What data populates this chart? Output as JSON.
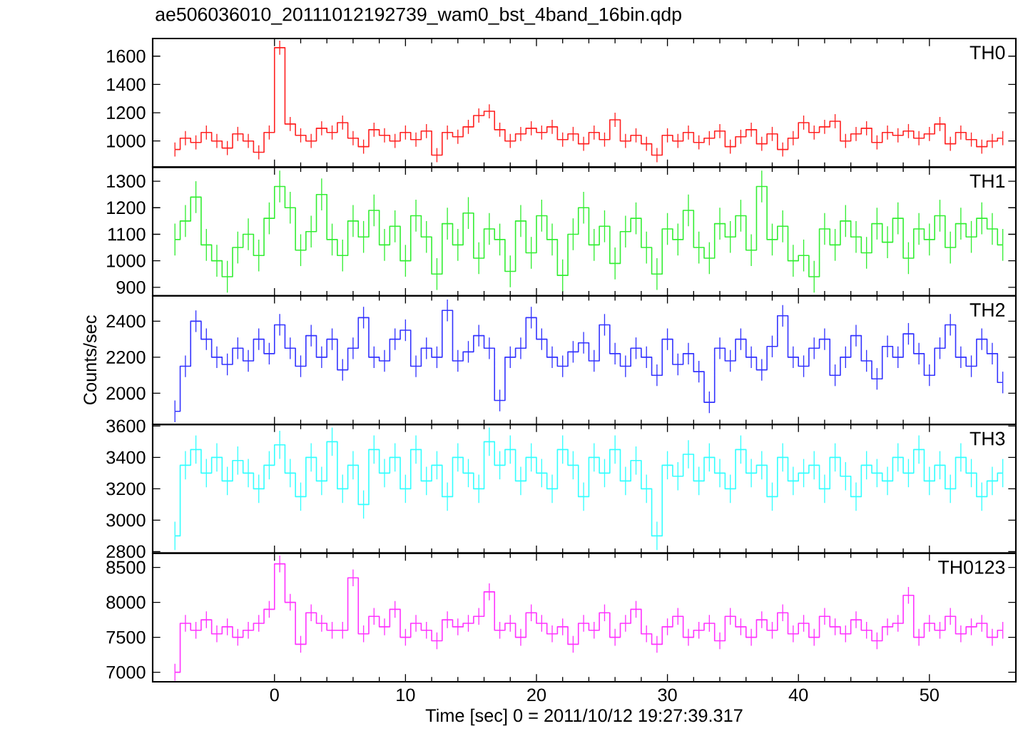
{
  "chart_data": [
    {
      "type": "step",
      "title": "ae506036010_20111012192739_wam0_bst_4band_16bin.qdp",
      "xlim": [
        -9.3,
        56.6
      ],
      "xticks": [
        0,
        10,
        20,
        30,
        40,
        50
      ],
      "ylim": [
        815,
        1725
      ],
      "yticks": [
        1000,
        1200,
        1400,
        1600
      ],
      "tick_labels": "y",
      "legend": "top right",
      "x": [
        -7.6,
        -6.8,
        -6.0,
        -5.2,
        -4.4,
        -3.6,
        -2.8,
        -2.0,
        -1.2,
        -0.4,
        0.4,
        1.2,
        2.0,
        2.8,
        3.6,
        4.4,
        5.2,
        6.0,
        6.8,
        7.6,
        8.4,
        9.2,
        10.0,
        10.8,
        11.6,
        12.4,
        13.2,
        14.0,
        14.8,
        15.6,
        16.4,
        17.2,
        18.0,
        18.8,
        19.6,
        20.4,
        21.2,
        22.0,
        22.8,
        23.6,
        24.4,
        25.2,
        26.0,
        26.8,
        27.6,
        28.4,
        29.2,
        30.0,
        30.8,
        31.6,
        32.4,
        33.2,
        34.0,
        34.8,
        35.6,
        36.4,
        37.2,
        38.0,
        38.8,
        39.6,
        40.4,
        41.2,
        42.0,
        42.8,
        43.6,
        44.4,
        45.2,
        46.0,
        46.8,
        47.6,
        48.4,
        49.2,
        50.0,
        50.8,
        51.6,
        52.4,
        53.2,
        54.0,
        54.8,
        55.6
      ],
      "series": [
        {
          "name": "TH0",
          "color": "#ff2020",
          "values": [
            940,
            1020,
            990,
            1060,
            1000,
            950,
            1050,
            1000,
            920,
            1060,
            1660,
            1120,
            1040,
            1000,
            1090,
            1060,
            1130,
            1020,
            960,
            1080,
            1040,
            1000,
            1060,
            1010,
            1070,
            900,
            1060,
            1030,
            1100,
            1180,
            1210,
            1080,
            1000,
            1050,
            1090,
            1060,
            1100,
            1010,
            1050,
            980,
            1060,
            1010,
            1150,
            1000,
            1040,
            980,
            900,
            1040,
            1000,
            1060,
            990,
            1020,
            1070,
            960,
            1030,
            1080,
            980,
            1050,
            940,
            1020,
            1130,
            1060,
            1100,
            1140,
            1000,
            1050,
            1090,
            990,
            1060,
            1040,
            1070,
            1020,
            1050,
            1120,
            980,
            1060,
            1010,
            960,
            1000,
            1020
          ],
          "errors": [
            50,
            50,
            50,
            50,
            50,
            50,
            50,
            50,
            50,
            50,
            50,
            50,
            50,
            50,
            50,
            50,
            50,
            50,
            50,
            50,
            50,
            50,
            50,
            50,
            50,
            50,
            50,
            50,
            50,
            50,
            50,
            50,
            50,
            50,
            50,
            50,
            50,
            50,
            50,
            50,
            50,
            50,
            50,
            50,
            50,
            50,
            50,
            50,
            50,
            50,
            50,
            50,
            50,
            50,
            50,
            50,
            50,
            50,
            50,
            50,
            50,
            50,
            50,
            50,
            50,
            50,
            50,
            50,
            50,
            50,
            50,
            50,
            50,
            50,
            50,
            50,
            50,
            50,
            50,
            50
          ]
        }
      ]
    },
    {
      "type": "step",
      "xlim": [
        -9.3,
        56.6
      ],
      "xticks": [
        0,
        10,
        20,
        30,
        40,
        50
      ],
      "ylim": [
        868,
        1353
      ],
      "yticks": [
        900,
        1000,
        1100,
        1200,
        1300
      ],
      "tick_labels": "y",
      "legend": "top right",
      "x": [
        -7.6,
        -6.8,
        -6.0,
        -5.2,
        -4.4,
        -3.6,
        -2.8,
        -2.0,
        -1.2,
        -0.4,
        0.4,
        1.2,
        2.0,
        2.8,
        3.6,
        4.4,
        5.2,
        6.0,
        6.8,
        7.6,
        8.4,
        9.2,
        10.0,
        10.8,
        11.6,
        12.4,
        13.2,
        14.0,
        14.8,
        15.6,
        16.4,
        17.2,
        18.0,
        18.8,
        19.6,
        20.4,
        21.2,
        22.0,
        22.8,
        23.6,
        24.4,
        25.2,
        26.0,
        26.8,
        27.6,
        28.4,
        29.2,
        30.0,
        30.8,
        31.6,
        32.4,
        33.2,
        34.0,
        34.8,
        35.6,
        36.4,
        37.2,
        38.0,
        38.8,
        39.6,
        40.4,
        41.2,
        42.0,
        42.8,
        43.6,
        44.4,
        45.2,
        46.0,
        46.8,
        47.6,
        48.4,
        49.2,
        50.0,
        50.8,
        51.6,
        52.4,
        53.2,
        54.0,
        54.8,
        55.6
      ],
      "series": [
        {
          "name": "TH1",
          "color": "#33ee33",
          "values": [
            1080,
            1150,
            1240,
            1060,
            1000,
            940,
            1050,
            1100,
            1020,
            1160,
            1280,
            1200,
            1040,
            1110,
            1250,
            1080,
            1020,
            1150,
            1090,
            1190,
            1060,
            1130,
            1000,
            1170,
            1090,
            950,
            1140,
            1060,
            1180,
            1010,
            1120,
            1080,
            960,
            1150,
            1030,
            1170,
            1080,
            945,
            1100,
            1200,
            1060,
            1130,
            990,
            1110,
            1160,
            1050,
            950,
            1120,
            1080,
            1190,
            1050,
            1010,
            1140,
            1090,
            1170,
            1040,
            1280,
            1080,
            1130,
            1000,
            1020,
            940,
            1120,
            1060,
            1150,
            1090,
            1030,
            1140,
            1070,
            1160,
            1010,
            1120,
            1080,
            1170,
            1050,
            1140,
            1090,
            1160,
            1120,
            1060
          ],
          "errors": [
            60,
            60,
            60,
            60,
            60,
            60,
            60,
            60,
            60,
            60,
            60,
            60,
            60,
            60,
            60,
            60,
            60,
            60,
            60,
            60,
            60,
            60,
            60,
            60,
            60,
            60,
            60,
            60,
            60,
            60,
            60,
            60,
            60,
            60,
            60,
            60,
            60,
            60,
            60,
            60,
            60,
            60,
            60,
            60,
            60,
            60,
            60,
            60,
            60,
            60,
            60,
            60,
            60,
            60,
            60,
            60,
            60,
            60,
            60,
            60,
            60,
            60,
            60,
            60,
            60,
            60,
            60,
            60,
            60,
            60,
            60,
            60,
            60,
            60,
            60,
            60,
            60,
            60,
            60,
            60
          ]
        }
      ]
    },
    {
      "type": "step",
      "xlim": [
        -9.3,
        56.6
      ],
      "xticks": [
        0,
        10,
        20,
        30,
        40,
        50
      ],
      "ylim": [
        1827,
        2541
      ],
      "yticks": [
        2000,
        2200,
        2400
      ],
      "tick_labels": "y",
      "legend": "top right",
      "ylabel": "Counts/sec",
      "x": [
        -7.6,
        -6.8,
        -6.0,
        -5.2,
        -4.4,
        -3.6,
        -2.8,
        -2.0,
        -1.2,
        -0.4,
        0.4,
        1.2,
        2.0,
        2.8,
        3.6,
        4.4,
        5.2,
        6.0,
        6.8,
        7.6,
        8.4,
        9.2,
        10.0,
        10.8,
        11.6,
        12.4,
        13.2,
        14.0,
        14.8,
        15.6,
        16.4,
        17.2,
        18.0,
        18.8,
        19.6,
        20.4,
        21.2,
        22.0,
        22.8,
        23.6,
        24.4,
        25.2,
        26.0,
        26.8,
        27.6,
        28.4,
        29.2,
        30.0,
        30.8,
        31.6,
        32.4,
        33.2,
        34.0,
        34.8,
        35.6,
        36.4,
        37.2,
        38.0,
        38.8,
        39.6,
        40.4,
        41.2,
        42.0,
        42.8,
        43.6,
        44.4,
        45.2,
        46.0,
        46.8,
        47.6,
        48.4,
        49.2,
        50.0,
        50.8,
        51.6,
        52.4,
        53.2,
        54.0,
        54.8,
        55.6
      ],
      "series": [
        {
          "name": "TH2",
          "color": "#3333ff",
          "values": [
            1900,
            2150,
            2400,
            2300,
            2200,
            2160,
            2250,
            2180,
            2300,
            2220,
            2380,
            2250,
            2150,
            2320,
            2200,
            2300,
            2130,
            2250,
            2420,
            2200,
            2180,
            2300,
            2350,
            2150,
            2250,
            2200,
            2460,
            2180,
            2230,
            2320,
            2250,
            1960,
            2200,
            2250,
            2420,
            2300,
            2200,
            2150,
            2230,
            2280,
            2180,
            2380,
            2220,
            2150,
            2250,
            2200,
            2100,
            2300,
            2160,
            2220,
            2120,
            1950,
            2250,
            2180,
            2300,
            2200,
            2130,
            2260,
            2430,
            2200,
            2150,
            2250,
            2300,
            2100,
            2200,
            2320,
            2180,
            2080,
            2260,
            2200,
            2330,
            2220,
            2100,
            2250,
            2380,
            2200,
            2150,
            2300,
            2220,
            2060
          ],
          "errors": [
            60,
            60,
            60,
            60,
            60,
            60,
            60,
            60,
            60,
            60,
            60,
            60,
            60,
            60,
            60,
            60,
            60,
            60,
            60,
            60,
            60,
            60,
            60,
            60,
            60,
            60,
            60,
            60,
            60,
            60,
            60,
            60,
            60,
            60,
            60,
            60,
            60,
            60,
            60,
            60,
            60,
            60,
            60,
            60,
            60,
            60,
            60,
            60,
            60,
            60,
            60,
            60,
            60,
            60,
            60,
            60,
            60,
            60,
            60,
            60,
            60,
            60,
            60,
            60,
            60,
            60,
            60,
            60,
            60,
            60,
            60,
            60,
            60,
            60,
            60,
            60,
            60,
            60,
            60,
            60
          ]
        }
      ]
    },
    {
      "type": "step",
      "xlim": [
        -9.3,
        56.6
      ],
      "xticks": [
        0,
        10,
        20,
        30,
        40,
        50
      ],
      "ylim": [
        2790,
        3610
      ],
      "yticks": [
        2800,
        3000,
        3200,
        3400,
        3600
      ],
      "tick_labels": "y",
      "legend": "top right",
      "x": [
        -7.6,
        -6.8,
        -6.0,
        -5.2,
        -4.4,
        -3.6,
        -2.8,
        -2.0,
        -1.2,
        -0.4,
        0.4,
        1.2,
        2.0,
        2.8,
        3.6,
        4.4,
        5.2,
        6.0,
        6.8,
        7.6,
        8.4,
        9.2,
        10.0,
        10.8,
        11.6,
        12.4,
        13.2,
        14.0,
        14.8,
        15.6,
        16.4,
        17.2,
        18.0,
        18.8,
        19.6,
        20.4,
        21.2,
        22.0,
        22.8,
        23.6,
        24.4,
        25.2,
        26.0,
        26.8,
        27.6,
        28.4,
        29.2,
        30.0,
        30.8,
        31.6,
        32.4,
        33.2,
        34.0,
        34.8,
        35.6,
        36.4,
        37.2,
        38.0,
        38.8,
        39.6,
        40.4,
        41.2,
        42.0,
        42.8,
        43.6,
        44.4,
        45.2,
        46.0,
        46.8,
        47.6,
        48.4,
        49.2,
        50.0,
        50.8,
        51.6,
        52.4,
        53.2,
        54.0,
        54.8,
        55.6
      ],
      "series": [
        {
          "name": "TH3",
          "color": "#33ffff",
          "values": [
            2900,
            3350,
            3450,
            3300,
            3400,
            3250,
            3380,
            3300,
            3200,
            3350,
            3480,
            3300,
            3150,
            3400,
            3250,
            3500,
            3200,
            3350,
            3100,
            3450,
            3300,
            3400,
            3200,
            3450,
            3250,
            3350,
            3150,
            3400,
            3300,
            3200,
            3500,
            3350,
            3450,
            3250,
            3400,
            3300,
            3200,
            3450,
            3350,
            3150,
            3400,
            3300,
            3450,
            3250,
            3380,
            3200,
            2900,
            3350,
            3280,
            3420,
            3250,
            3400,
            3300,
            3200,
            3450,
            3300,
            3350,
            3150,
            3400,
            3250,
            3300,
            3350,
            3200,
            3400,
            3280,
            3150,
            3350,
            3300,
            3250,
            3400,
            3300,
            3450,
            3250,
            3350,
            3200,
            3400,
            3300,
            3150,
            3250,
            3300
          ],
          "errors": [
            90,
            90,
            90,
            90,
            90,
            90,
            90,
            90,
            90,
            90,
            90,
            90,
            90,
            90,
            90,
            90,
            90,
            90,
            90,
            90,
            90,
            90,
            90,
            90,
            90,
            90,
            90,
            90,
            90,
            90,
            90,
            90,
            90,
            90,
            90,
            90,
            90,
            90,
            90,
            90,
            90,
            90,
            90,
            90,
            90,
            90,
            90,
            90,
            90,
            90,
            90,
            90,
            90,
            90,
            90,
            90,
            90,
            90,
            90,
            90,
            90,
            90,
            90,
            90,
            90,
            90,
            90,
            90,
            90,
            90,
            90,
            90,
            90,
            90,
            90,
            90,
            90,
            90,
            90,
            90
          ]
        }
      ]
    },
    {
      "type": "step",
      "xlim": [
        -9.3,
        56.6
      ],
      "xticks": [
        0,
        10,
        20,
        30,
        40,
        50
      ],
      "ylim": [
        6864,
        8704
      ],
      "yticks": [
        7000,
        7500,
        8000,
        8500
      ],
      "legend": "top right",
      "xlabel": "Time [sec] 0 = 2011/10/12 19:27:39.317",
      "x": [
        -7.6,
        -6.8,
        -6.0,
        -5.2,
        -4.4,
        -3.6,
        -2.8,
        -2.0,
        -1.2,
        -0.4,
        0.4,
        1.2,
        2.0,
        2.8,
        3.6,
        4.4,
        5.2,
        6.0,
        6.8,
        7.6,
        8.4,
        9.2,
        10.0,
        10.8,
        11.6,
        12.4,
        13.2,
        14.0,
        14.8,
        15.6,
        16.4,
        17.2,
        18.0,
        18.8,
        19.6,
        20.4,
        21.2,
        22.0,
        22.8,
        23.6,
        24.4,
        25.2,
        26.0,
        26.8,
        27.6,
        28.4,
        29.2,
        30.0,
        30.8,
        31.6,
        32.4,
        33.2,
        34.0,
        34.8,
        35.6,
        36.4,
        37.2,
        38.0,
        38.8,
        39.6,
        40.4,
        41.2,
        42.0,
        42.8,
        43.6,
        44.4,
        45.2,
        46.0,
        46.8,
        47.6,
        48.4,
        49.2,
        50.0,
        50.8,
        51.6,
        52.4,
        53.2,
        54.0,
        54.8,
        55.6
      ],
      "series": [
        {
          "name": "TH0123",
          "color": "#ff33ff",
          "values": [
            7000,
            7700,
            7600,
            7750,
            7550,
            7650,
            7500,
            7600,
            7700,
            7900,
            8550,
            8000,
            7400,
            7850,
            7700,
            7600,
            7600,
            8350,
            7550,
            7800,
            7650,
            7900,
            7500,
            7700,
            7600,
            7450,
            7750,
            7650,
            7700,
            7800,
            8150,
            7600,
            7700,
            7500,
            7850,
            7700,
            7550,
            7650,
            7400,
            7700,
            7600,
            7850,
            7500,
            7700,
            7900,
            7550,
            7400,
            7650,
            7800,
            7500,
            7600,
            7700,
            7450,
            7800,
            7650,
            7500,
            7750,
            7600,
            7850,
            7550,
            7700,
            7500,
            7800,
            7650,
            7550,
            7750,
            7600,
            7450,
            7650,
            7700,
            8100,
            7500,
            7700,
            7600,
            7800,
            7550,
            7650,
            7700,
            7500,
            7600
          ],
          "errors": [
            120,
            120,
            120,
            120,
            120,
            120,
            120,
            120,
            120,
            120,
            120,
            120,
            120,
            120,
            120,
            120,
            120,
            120,
            120,
            120,
            120,
            120,
            120,
            120,
            120,
            120,
            120,
            120,
            120,
            120,
            120,
            120,
            120,
            120,
            120,
            120,
            120,
            120,
            120,
            120,
            120,
            120,
            120,
            120,
            120,
            120,
            120,
            120,
            120,
            120,
            120,
            120,
            120,
            120,
            120,
            120,
            120,
            120,
            120,
            120,
            120,
            120,
            120,
            120,
            120,
            120,
            120,
            120,
            120,
            120,
            120,
            120,
            120,
            120,
            120,
            120,
            120,
            120,
            120,
            120
          ]
        }
      ]
    }
  ]
}
